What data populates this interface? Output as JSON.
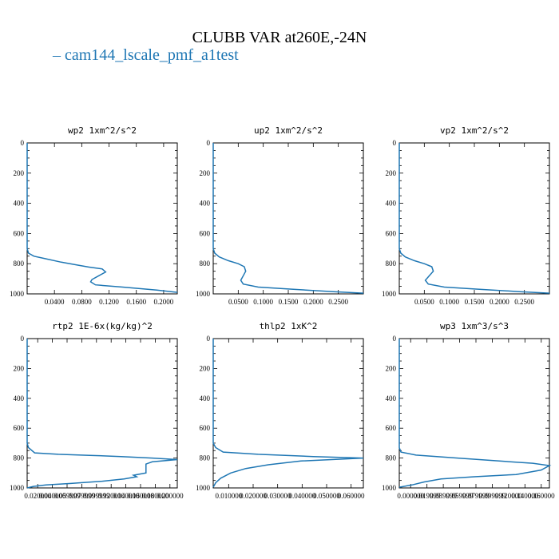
{
  "figure": {
    "title": "CLUBB VAR at260E,-24N",
    "legend_label": "cam144_lscale_pmf_a1test",
    "line_color": "#1f77b4"
  },
  "chart_data": [
    {
      "type": "line",
      "title": "wp2  1xm^2/s^2",
      "xlim": [
        0.0,
        0.22
      ],
      "ylim": [
        1000,
        0
      ],
      "yticks": [
        0,
        200,
        400,
        600,
        800,
        1000
      ],
      "xticks": [
        0.04,
        0.08,
        0.12,
        0.16,
        0.2
      ],
      "xtick_labels": [
        "0.0400",
        "0.0800",
        "0.1200",
        "0.1600",
        "0.2000"
      ],
      "x": [
        0,
        0,
        0.002,
        0.01,
        0.025,
        0.05,
        0.075,
        0.09,
        0.11,
        0.115,
        0.105,
        0.095,
        0.093,
        0.1,
        0.14,
        0.19,
        0.22
      ],
      "y": [
        0,
        700,
        730,
        750,
        765,
        790,
        810,
        822,
        835,
        855,
        880,
        905,
        920,
        940,
        955,
        975,
        990
      ]
    },
    {
      "type": "line",
      "title": "up2  1xm^2/s^2",
      "xlim": [
        0.0,
        0.3
      ],
      "ylim": [
        1000,
        0
      ],
      "yticks": [
        0,
        200,
        400,
        600,
        800,
        1000
      ],
      "xticks": [
        0.05,
        0.1,
        0.15,
        0.2,
        0.25
      ],
      "xtick_labels": [
        "0.0500",
        "0.1000",
        "0.1500",
        "0.2000",
        "0.2500"
      ],
      "x": [
        0,
        0,
        0.003,
        0.012,
        0.03,
        0.05,
        0.062,
        0.065,
        0.06,
        0.055,
        0.06,
        0.09,
        0.16,
        0.24,
        0.3
      ],
      "y": [
        0,
        700,
        730,
        755,
        780,
        800,
        820,
        850,
        880,
        910,
        935,
        955,
        970,
        985,
        995
      ]
    },
    {
      "type": "line",
      "title": "vp2  1xm^2/s^2",
      "xlim": [
        0.0,
        0.3
      ],
      "ylim": [
        1000,
        0
      ],
      "yticks": [
        0,
        200,
        400,
        600,
        800,
        1000
      ],
      "xticks": [
        0.05,
        0.1,
        0.15,
        0.2,
        0.25
      ],
      "xtick_labels": [
        "0.0500",
        "0.1000",
        "0.1500",
        "0.2000",
        "0.2500"
      ],
      "x": [
        0,
        0,
        0.003,
        0.012,
        0.03,
        0.05,
        0.065,
        0.068,
        0.06,
        0.052,
        0.058,
        0.09,
        0.16,
        0.24,
        0.3
      ],
      "y": [
        0,
        700,
        730,
        755,
        780,
        800,
        820,
        850,
        880,
        910,
        935,
        955,
        970,
        985,
        995
      ]
    },
    {
      "type": "line",
      "title": "rtp2  1E-6x(kg/kg)^2",
      "xlim": [
        0.0,
        0.24
      ],
      "ylim": [
        1000,
        0
      ],
      "yticks": [
        0,
        200,
        400,
        600,
        800,
        1000
      ],
      "xtick_labels": [
        "0.020000",
        "0.040000",
        "0.059999",
        "0.079999",
        "0.099999",
        "0.120000",
        "0.140000",
        "0.160000",
        "0.180000",
        "0.200000"
      ],
      "x": [
        0,
        0,
        0.002,
        0.012,
        0.05,
        0.1,
        0.15,
        0.2,
        0.24,
        0.2,
        0.19,
        0.19,
        0.17,
        0.175,
        0.155,
        0.12,
        0.07,
        0.03,
        0.01,
        0.0
      ],
      "y": [
        0,
        700,
        730,
        765,
        775,
        782,
        790,
        800,
        810,
        825,
        840,
        900,
        915,
        925,
        940,
        955,
        970,
        980,
        990,
        1000
      ]
    },
    {
      "type": "line",
      "title": "thlp2  1xK^2",
      "xlim": [
        0.0,
        0.06
      ],
      "ylim": [
        1000,
        0
      ],
      "yticks": [
        0,
        200,
        400,
        600,
        800,
        1000
      ],
      "xtick_labels": [
        "0.010000",
        "0.020000",
        "0.030000",
        "0.040000",
        "0.050000",
        "0.060000"
      ],
      "x": [
        0,
        0,
        0.001,
        0.004,
        0.018,
        0.04,
        0.06,
        0.035,
        0.022,
        0.013,
        0.007,
        0.003,
        0.001,
        0.0
      ],
      "y": [
        0,
        700,
        730,
        760,
        775,
        790,
        800,
        820,
        845,
        870,
        900,
        935,
        965,
        995
      ]
    },
    {
      "type": "line",
      "title": "wp3  1xm^3/s^3",
      "xlim": [
        0.0,
        0.18
      ],
      "ylim": [
        1000,
        0
      ],
      "yticks": [
        0,
        200,
        400,
        600,
        800,
        1000
      ],
      "xtick_labels": [
        "0.000000",
        "0.019999",
        "0.039999",
        "0.059999",
        "0.079999",
        "0.099999",
        "0.120000",
        "0.140000",
        "0.160000"
      ],
      "x": [
        0,
        0,
        0.002,
        0.02,
        0.07,
        0.12,
        0.16,
        0.18,
        0.17,
        0.14,
        0.09,
        0.05,
        0.03,
        0.015,
        0.0
      ],
      "y": [
        0,
        730,
        760,
        780,
        800,
        820,
        835,
        850,
        880,
        910,
        925,
        940,
        960,
        980,
        995
      ]
    }
  ]
}
